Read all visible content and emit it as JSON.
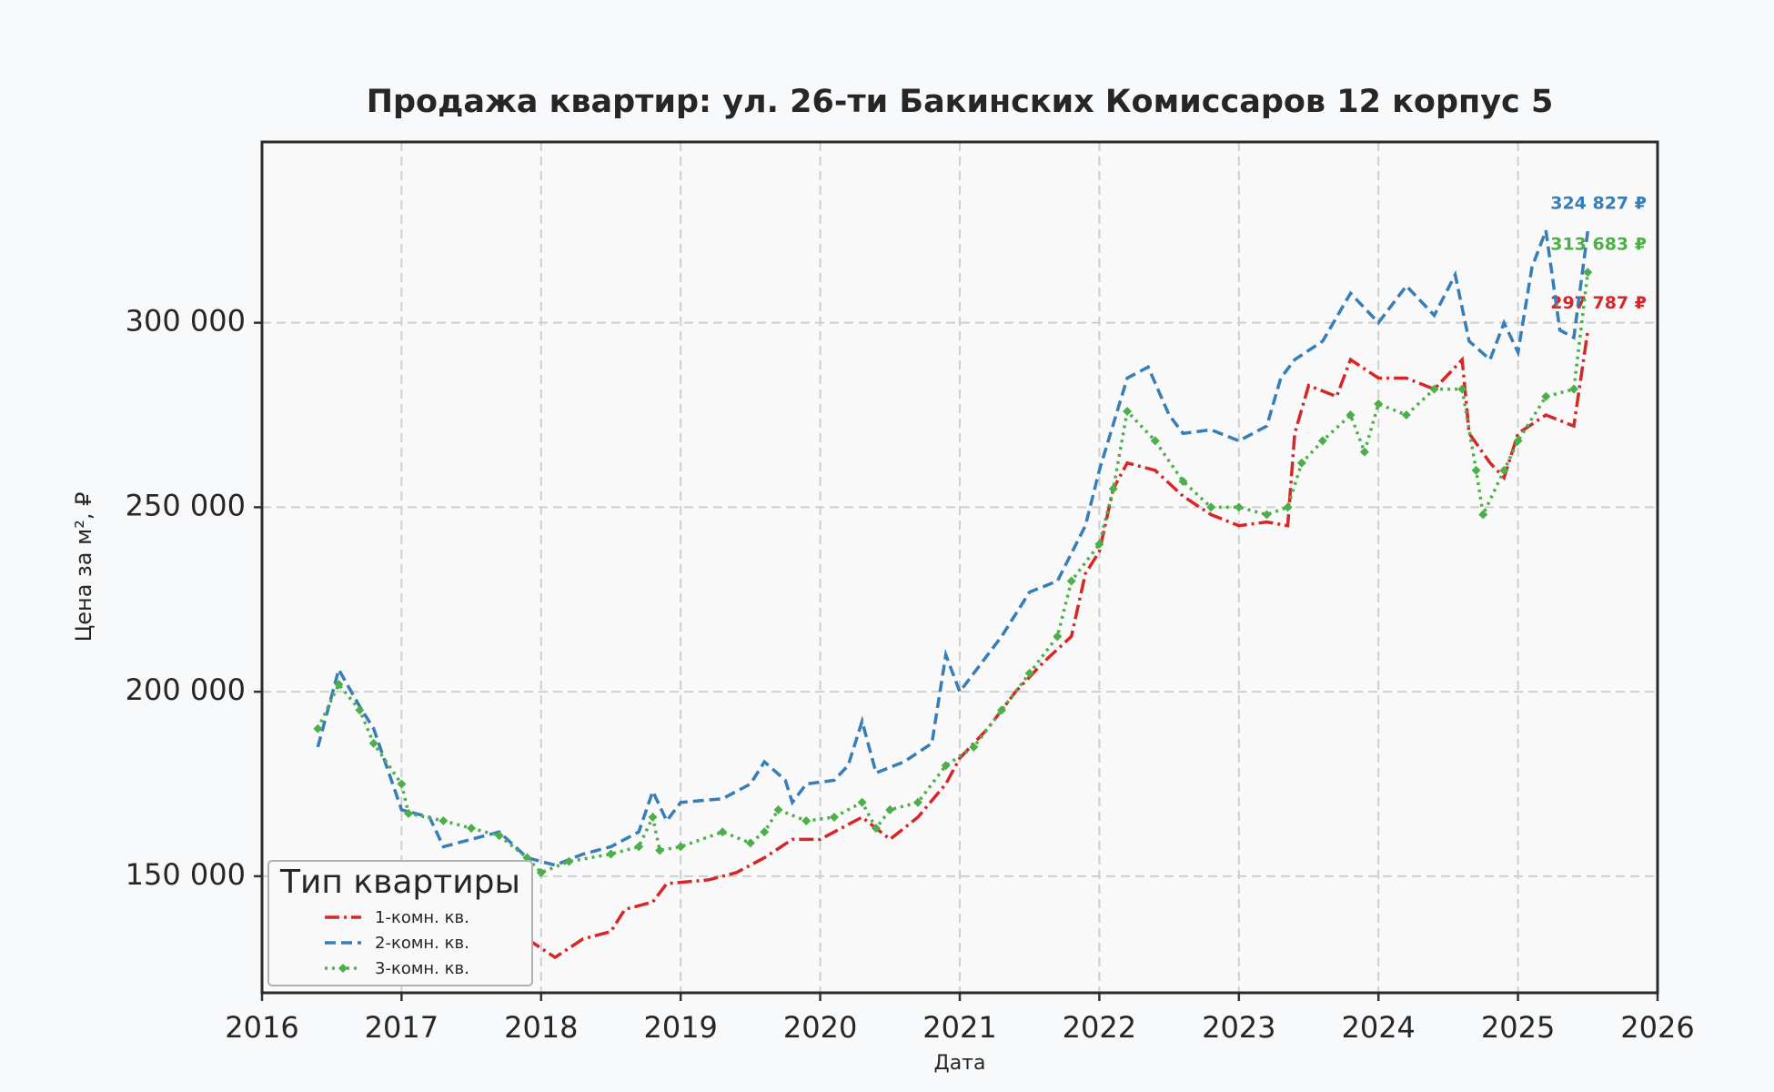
{
  "chart_data": {
    "type": "line",
    "title": "Продажа квартир: ул. 26-ти Бакинских Комиссаров 12 корпус 5",
    "x_label": "Дата",
    "y_label": "Цена за м², ₽",
    "xlim": [
      2016,
      2026
    ],
    "xticks": [
      2016,
      2017,
      2018,
      2019,
      2020,
      2021,
      2022,
      2023,
      2024,
      2025,
      2026
    ],
    "ylim": [
      118400,
      349000
    ],
    "yticks": [
      {
        "value": 150000,
        "label": "150 000"
      },
      {
        "value": 200000,
        "label": "200 000"
      },
      {
        "value": 250000,
        "label": "250 000"
      },
      {
        "value": 300000,
        "label": "300 000"
      }
    ],
    "grid": true,
    "legend": {
      "title": "Тип квартиры",
      "position": "lower left"
    },
    "series": [
      {
        "name": "1-комн. кв.",
        "color": "#d62728",
        "linestyle": "dashdot",
        "x": [
          2017.9,
          2018.1,
          2018.3,
          2018.5,
          2018.6,
          2018.8,
          2018.9,
          2019.2,
          2019.4,
          2019.6,
          2019.8,
          2020.0,
          2020.3,
          2020.4,
          2020.5,
          2020.7,
          2020.9,
          2021.0,
          2021.2,
          2021.4,
          2021.6,
          2021.8,
          2021.9,
          2022.0,
          2022.1,
          2022.2,
          2022.4,
          2022.6,
          2022.8,
          2023.0,
          2023.2,
          2023.35,
          2023.4,
          2023.5,
          2023.7,
          2023.8,
          2024.0,
          2024.2,
          2024.4,
          2024.6,
          2024.65,
          2024.8,
          2024.9,
          2025.0,
          2025.2,
          2025.4,
          2025.5
        ],
        "values": [
          133000,
          128000,
          133000,
          135000,
          141000,
          143000,
          148000,
          149000,
          151000,
          155000,
          160000,
          160000,
          166000,
          163000,
          160000,
          166000,
          175000,
          182000,
          190000,
          200000,
          208000,
          215000,
          232000,
          238000,
          255000,
          262000,
          260000,
          253000,
          248000,
          245000,
          246000,
          245000,
          270000,
          283000,
          280000,
          290000,
          285000,
          285000,
          282000,
          290000,
          270000,
          262000,
          258000,
          270000,
          275000,
          272000,
          297787
        ],
        "value_labels": [
          null,
          null,
          null,
          null,
          null,
          null,
          null,
          null,
          null,
          null,
          null,
          null,
          null,
          null,
          null,
          null,
          null,
          null,
          null,
          null,
          null,
          null,
          null,
          null,
          null,
          null,
          null,
          null,
          null,
          null,
          null,
          null,
          null,
          null,
          null,
          null,
          null,
          null,
          null,
          null,
          null,
          null,
          null,
          null,
          null,
          null,
          "297 787 ₽"
        ]
      },
      {
        "name": "2-комн. кв.",
        "color": "#377eb8",
        "linestyle": "dashed",
        "x": [
          2016.4,
          2016.55,
          2016.7,
          2016.8,
          2017.0,
          2017.2,
          2017.3,
          2017.5,
          2017.7,
          2017.9,
          2018.1,
          2018.3,
          2018.5,
          2018.7,
          2018.8,
          2018.9,
          2019.0,
          2019.3,
          2019.5,
          2019.6,
          2019.75,
          2019.8,
          2019.9,
          2020.1,
          2020.2,
          2020.3,
          2020.4,
          2020.6,
          2020.8,
          2020.9,
          2021.0,
          2021.2,
          2021.3,
          2021.5,
          2021.7,
          2021.9,
          2022.0,
          2022.2,
          2022.35,
          2022.5,
          2022.6,
          2022.8,
          2023.0,
          2023.2,
          2023.3,
          2023.4,
          2023.6,
          2023.8,
          2024.0,
          2024.2,
          2024.4,
          2024.55,
          2024.65,
          2024.8,
          2024.9,
          2025.0,
          2025.1,
          2025.2,
          2025.3,
          2025.4,
          2025.5
        ],
        "values": [
          185000,
          206000,
          196000,
          190000,
          168000,
          166000,
          158000,
          160000,
          162000,
          155000,
          153000,
          156000,
          158000,
          162000,
          173000,
          165000,
          170000,
          171000,
          175000,
          181000,
          176000,
          170000,
          175000,
          176000,
          180000,
          192000,
          178000,
          181000,
          186000,
          210000,
          200000,
          210000,
          215000,
          227000,
          230000,
          245000,
          260000,
          285000,
          288000,
          275000,
          270000,
          271000,
          268000,
          272000,
          285000,
          290000,
          295000,
          308000,
          300000,
          310000,
          302000,
          313000,
          295000,
          290000,
          300000,
          292000,
          315000,
          325000,
          298000,
          296000,
          324827
        ],
        "value_labels": [
          null,
          null,
          null,
          null,
          null,
          null,
          null,
          null,
          null,
          null,
          null,
          null,
          null,
          null,
          null,
          null,
          null,
          null,
          null,
          null,
          null,
          null,
          null,
          null,
          null,
          null,
          null,
          null,
          null,
          null,
          null,
          null,
          null,
          null,
          null,
          null,
          null,
          null,
          null,
          null,
          null,
          null,
          null,
          null,
          null,
          null,
          null,
          null,
          null,
          null,
          null,
          null,
          null,
          null,
          null,
          null,
          null,
          null,
          null,
          null,
          "324 827 ₽"
        ]
      },
      {
        "name": "3-комн. кв.",
        "color": "#4daf4a",
        "linestyle": "dotted",
        "marker": "diamond",
        "x": [
          2016.4,
          2016.55,
          2016.7,
          2016.8,
          2017.0,
          2017.05,
          2017.3,
          2017.5,
          2017.7,
          2017.9,
          2018.0,
          2018.2,
          2018.5,
          2018.7,
          2018.8,
          2018.85,
          2019.0,
          2019.3,
          2019.5,
          2019.6,
          2019.7,
          2019.9,
          2020.1,
          2020.3,
          2020.4,
          2020.5,
          2020.7,
          2020.9,
          2021.1,
          2021.3,
          2021.5,
          2021.7,
          2021.8,
          2022.0,
          2022.1,
          2022.2,
          2022.4,
          2022.6,
          2022.8,
          2023.0,
          2023.2,
          2023.35,
          2023.45,
          2023.6,
          2023.8,
          2023.9,
          2024.0,
          2024.2,
          2024.4,
          2024.6,
          2024.7,
          2024.75,
          2024.9,
          2025.0,
          2025.2,
          2025.4,
          2025.5
        ],
        "values": [
          190000,
          202000,
          195000,
          186000,
          175000,
          167000,
          165000,
          163000,
          161000,
          155000,
          151000,
          154000,
          156000,
          158000,
          166000,
          157000,
          158000,
          162000,
          159000,
          162000,
          168000,
          165000,
          166000,
          170000,
          163000,
          168000,
          170000,
          180000,
          185000,
          195000,
          205000,
          215000,
          230000,
          240000,
          255000,
          276000,
          268000,
          257000,
          250000,
          250000,
          248000,
          250000,
          262000,
          268000,
          275000,
          265000,
          278000,
          275000,
          282000,
          282000,
          260000,
          248000,
          260000,
          268000,
          280000,
          282000,
          313683
        ],
        "value_labels": [
          null,
          null,
          null,
          null,
          null,
          null,
          null,
          null,
          null,
          null,
          null,
          null,
          null,
          null,
          null,
          null,
          null,
          null,
          null,
          null,
          null,
          null,
          null,
          null,
          null,
          null,
          null,
          null,
          null,
          null,
          null,
          null,
          null,
          null,
          null,
          null,
          null,
          null,
          null,
          null,
          null,
          null,
          null,
          null,
          null,
          null,
          null,
          null,
          null,
          null,
          null,
          null,
          null,
          null,
          null,
          null,
          "313 683 ₽"
        ]
      }
    ]
  }
}
